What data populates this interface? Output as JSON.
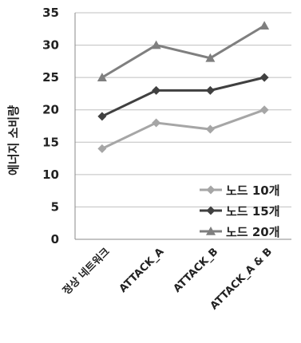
{
  "chart_data": {
    "type": "line",
    "categories": [
      "정상 네트워크",
      "ATTACK_A",
      "ATTACK_B",
      "ATTACK_A & B"
    ],
    "ylabel": "에너지 소비량",
    "xlabel": "",
    "ylim": [
      0,
      35
    ],
    "yticks": [
      0,
      5,
      10,
      15,
      20,
      25,
      30,
      35
    ],
    "grid": "horizontal",
    "legend": "bottom-right",
    "series": [
      {
        "name": "노드 10개",
        "values": [
          14,
          18,
          17,
          20
        ],
        "color": "#a6a6a6",
        "marker": "diamond"
      },
      {
        "name": "노드 15개",
        "values": [
          19,
          23,
          23,
          25
        ],
        "color": "#404040",
        "marker": "diamond"
      },
      {
        "name": "노드 20개",
        "values": [
          25,
          30,
          28,
          33
        ],
        "color": "#7f7f7f",
        "marker": "triangle"
      }
    ]
  }
}
